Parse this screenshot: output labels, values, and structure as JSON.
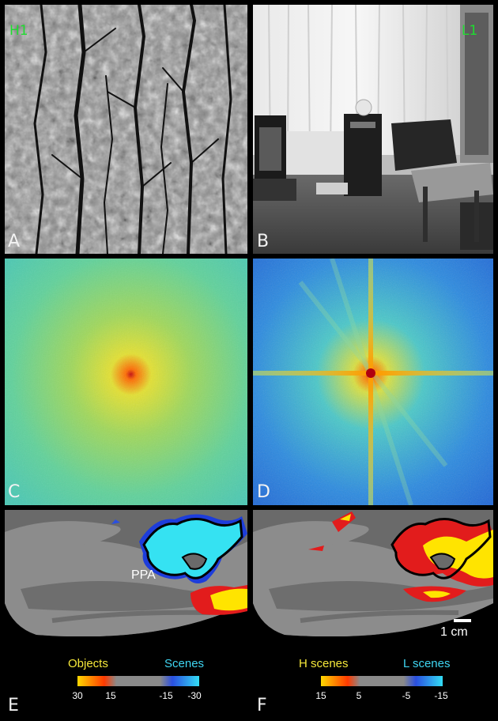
{
  "panels": {
    "A": {
      "letter": "A",
      "tag": "H1"
    },
    "B": {
      "letter": "B",
      "tag": "L1"
    },
    "C": {
      "letter": "C"
    },
    "D": {
      "letter": "D"
    },
    "E": {
      "letter": "E",
      "roi_label": "PPA"
    },
    "F": {
      "letter": "F"
    }
  },
  "scale_bar": {
    "label": "1 cm"
  },
  "colorbars": {
    "E": {
      "left_title": "Objects",
      "right_title": "Scenes",
      "ticks": [
        "30",
        "15",
        "-15",
        "-30"
      ],
      "left_title_color": "#f6e83a",
      "right_title_color": "#3fd6f2"
    },
    "F": {
      "left_title": "H scenes",
      "right_title": "L scenes",
      "ticks": [
        "15",
        "5",
        "-5",
        "-15"
      ],
      "left_title_color": "#f6e83a",
      "right_title_color": "#3fd6f2"
    }
  },
  "colors": {
    "tag_green": "#1fdc2f",
    "hot": "#ffe400",
    "cold": "#33ddf5",
    "background": "#000000"
  }
}
